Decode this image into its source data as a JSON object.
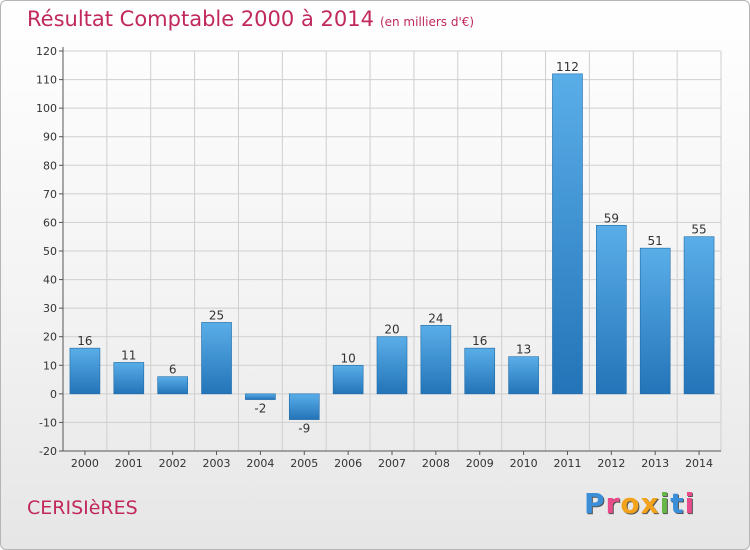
{
  "title": "Résultat Comptable 2000 à 2014",
  "subtitle": "(en milliers d'€)",
  "commune": "CERISIèRES",
  "logo": {
    "text": "Proxiti",
    "colors": [
      "#3a8fd8",
      "#e84c8b",
      "#f2a31b",
      "#f2a31b",
      "#67b64a",
      "#3a8fd8",
      "#e84c8b"
    ]
  },
  "colors": {
    "title": "#c0285e",
    "bar_light": "#5aaee8",
    "bar_dark": "#2374b8",
    "grid": "#cfcfcf",
    "axis": "#555555"
  },
  "chart_data": {
    "type": "bar",
    "title": "Résultat Comptable 2000 à 2014",
    "xlabel": "",
    "ylabel": "",
    "categories": [
      "2000",
      "2001",
      "2002",
      "2003",
      "2004",
      "2005",
      "2006",
      "2007",
      "2008",
      "2009",
      "2010",
      "2011",
      "2012",
      "2013",
      "2014"
    ],
    "values": [
      16,
      11,
      6,
      25,
      -2,
      -9,
      10,
      20,
      24,
      16,
      13,
      112,
      59,
      51,
      55
    ],
    "ylim": [
      -20,
      120
    ],
    "yticks": [
      -20,
      -10,
      0,
      10,
      20,
      30,
      40,
      50,
      60,
      70,
      80,
      90,
      100,
      110,
      120
    ],
    "grid": true
  }
}
